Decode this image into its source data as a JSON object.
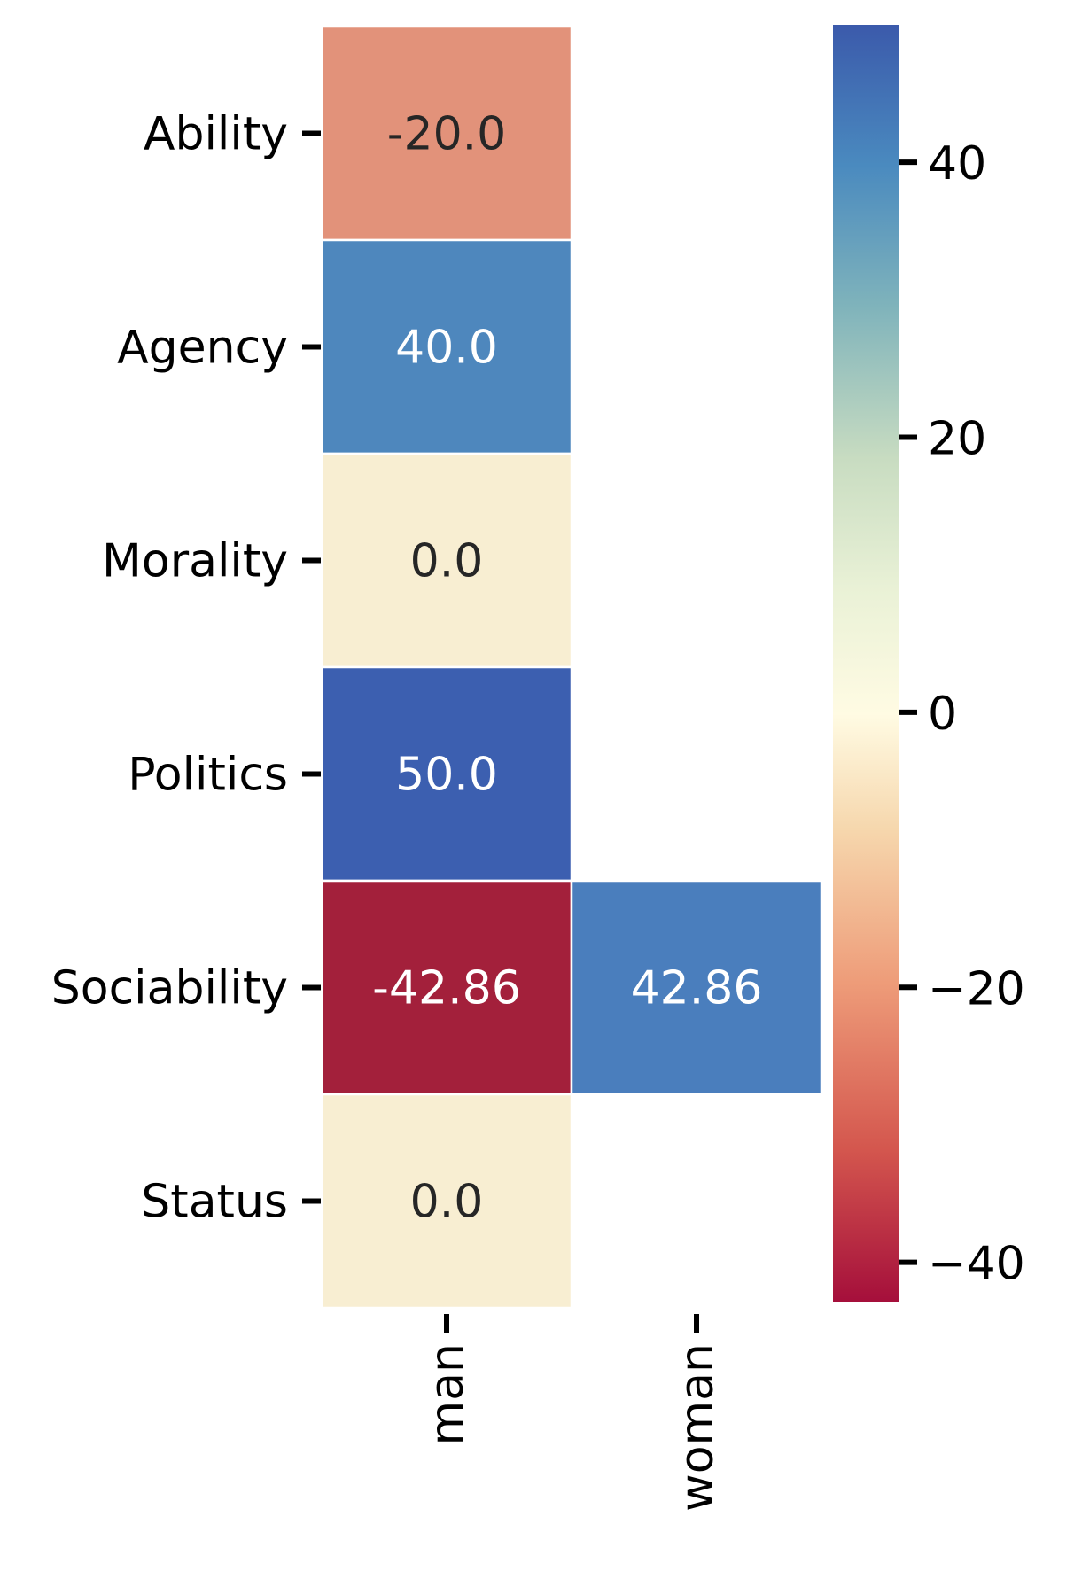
{
  "chart_data": {
    "type": "heatmap",
    "title": "",
    "xlabel": "",
    "ylabel": "",
    "rows": [
      "Ability",
      "Agency",
      "Morality",
      "Politics",
      "Sociability",
      "Status"
    ],
    "columns": [
      "man",
      "woman"
    ],
    "cells": [
      {
        "row": "Ability",
        "column": "man",
        "value": -20.0,
        "label": "-20.0"
      },
      {
        "row": "Agency",
        "column": "man",
        "value": 40.0,
        "label": "40.0"
      },
      {
        "row": "Morality",
        "column": "man",
        "value": 0.0,
        "label": "0.0"
      },
      {
        "row": "Politics",
        "column": "man",
        "value": 50.0,
        "label": "50.0"
      },
      {
        "row": "Sociability",
        "column": "man",
        "value": -42.86,
        "label": "-42.86"
      },
      {
        "row": "Sociability",
        "column": "woman",
        "value": 42.86,
        "label": "42.86"
      },
      {
        "row": "Status",
        "column": "man",
        "value": 0.0,
        "label": "0.0"
      }
    ],
    "colorbar": {
      "colormap": "RdYlBu",
      "range": [
        -42.86,
        50.0
      ],
      "ticks": [
        40,
        20,
        0,
        -20,
        -40
      ],
      "tick_labels": [
        "40",
        "20",
        "0",
        "−20",
        "−40"
      ]
    },
    "colors": {
      "-20.0": "#e2927a",
      "40.0": "#4e87bd",
      "0.0": "#f8eed2",
      "50.0": "#3c5fb0",
      "-42.86": "#a3203b",
      "42.86": "#4a7ebd"
    }
  }
}
